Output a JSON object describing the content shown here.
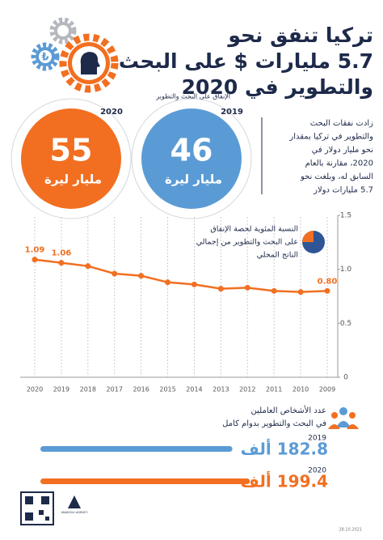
{
  "header": {
    "title_lines": [
      "تركيا تنفق نحو",
      "5.7 مليارات $ على البحث",
      "والتطوير في 2020"
    ]
  },
  "spending": {
    "caption": "الإنفاق على البحث والتطوير",
    "items": [
      {
        "year": "2020",
        "value": 55,
        "unit": "مليار ليرة",
        "color": "#f26f21"
      },
      {
        "year": "2019",
        "value": 46,
        "unit": "مليار ليرة",
        "color": "#5b9bd5"
      }
    ],
    "note_lines": [
      "زادت نفقات البحث",
      "والتطوير في تركيا بمقدار",
      "نحو مليار دولار في",
      "2020، مقارنة بالعام",
      "السابق له، وبلغت نحو",
      "5.7 مليارات دولار"
    ]
  },
  "chart_data": {
    "type": "line",
    "legend_lines": [
      "النسبة المئوية لحصة الإنفاق",
      "على البحث والتطوير  من إجمالي",
      "الناتج المحلي"
    ],
    "categories": [
      "2020",
      "2019",
      "2018",
      "2017",
      "2016",
      "2015",
      "2014",
      "2013",
      "2012",
      "2011",
      "2010",
      "2009"
    ],
    "values": [
      1.09,
      1.06,
      1.03,
      0.96,
      0.94,
      0.88,
      0.86,
      0.82,
      0.83,
      0.8,
      0.79,
      0.8
    ],
    "value_labels": [
      "1.09",
      "1.06",
      null,
      null,
      null,
      null,
      null,
      null,
      null,
      null,
      null,
      "0.80"
    ],
    "color": "#f26f21",
    "ylim": [
      0,
      1.5
    ],
    "yticks": [
      0,
      0.5,
      {
        "value": 1,
        "label": "1.0"
      },
      1.5
    ],
    "grid": true
  },
  "employees": {
    "caption_lines": [
      "عدد الأشخاص العاملين",
      "في البحث والتطوير بدوام كامل"
    ],
    "items": [
      {
        "year": "2019",
        "value": 182.8,
        "label": "182.8 ألف",
        "color": "#5b9bd5"
      },
      {
        "year": "2020",
        "value": 199.4,
        "label": "199.4 ألف",
        "color": "#f26f21"
      }
    ]
  },
  "footer": {
    "agency": "ANADOLU AGENCY",
    "date": "28.10.2021"
  }
}
